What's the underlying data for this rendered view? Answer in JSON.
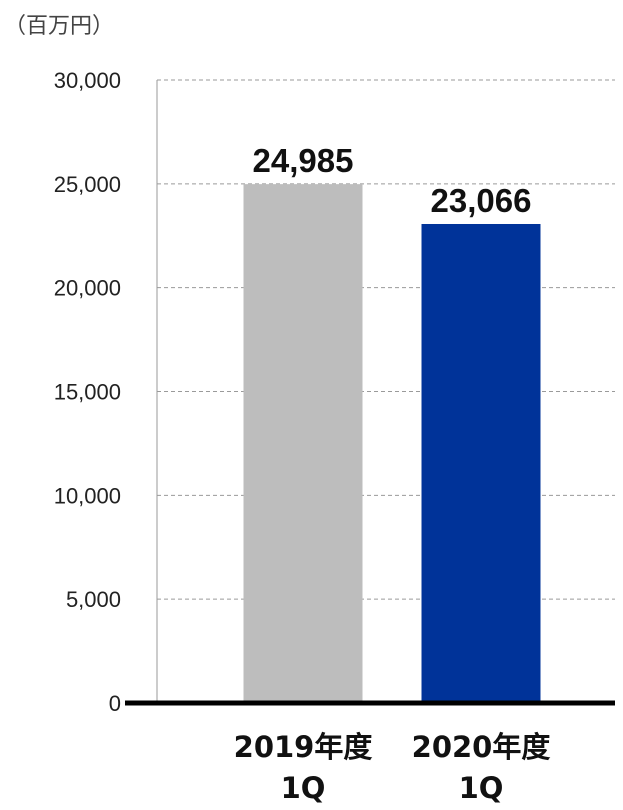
{
  "chart_data": {
    "type": "bar",
    "unit_label": "（百万円）",
    "categories": [
      [
        "2019年度",
        "1Q"
      ],
      [
        "2020年度",
        "1Q"
      ]
    ],
    "values": [
      24985,
      23066
    ],
    "value_labels": [
      "24,985",
      "23,066"
    ],
    "colors": [
      "#bdbdbd",
      "#003399"
    ],
    "ylim": [
      0,
      30000
    ],
    "yticks": [
      0,
      5000,
      10000,
      15000,
      20000,
      25000,
      30000
    ],
    "ytick_labels": [
      "0",
      "5,000",
      "10,000",
      "15,000",
      "20,000",
      "25,000",
      "30,000"
    ],
    "grid": true,
    "xlabel": "",
    "ylabel": ""
  }
}
